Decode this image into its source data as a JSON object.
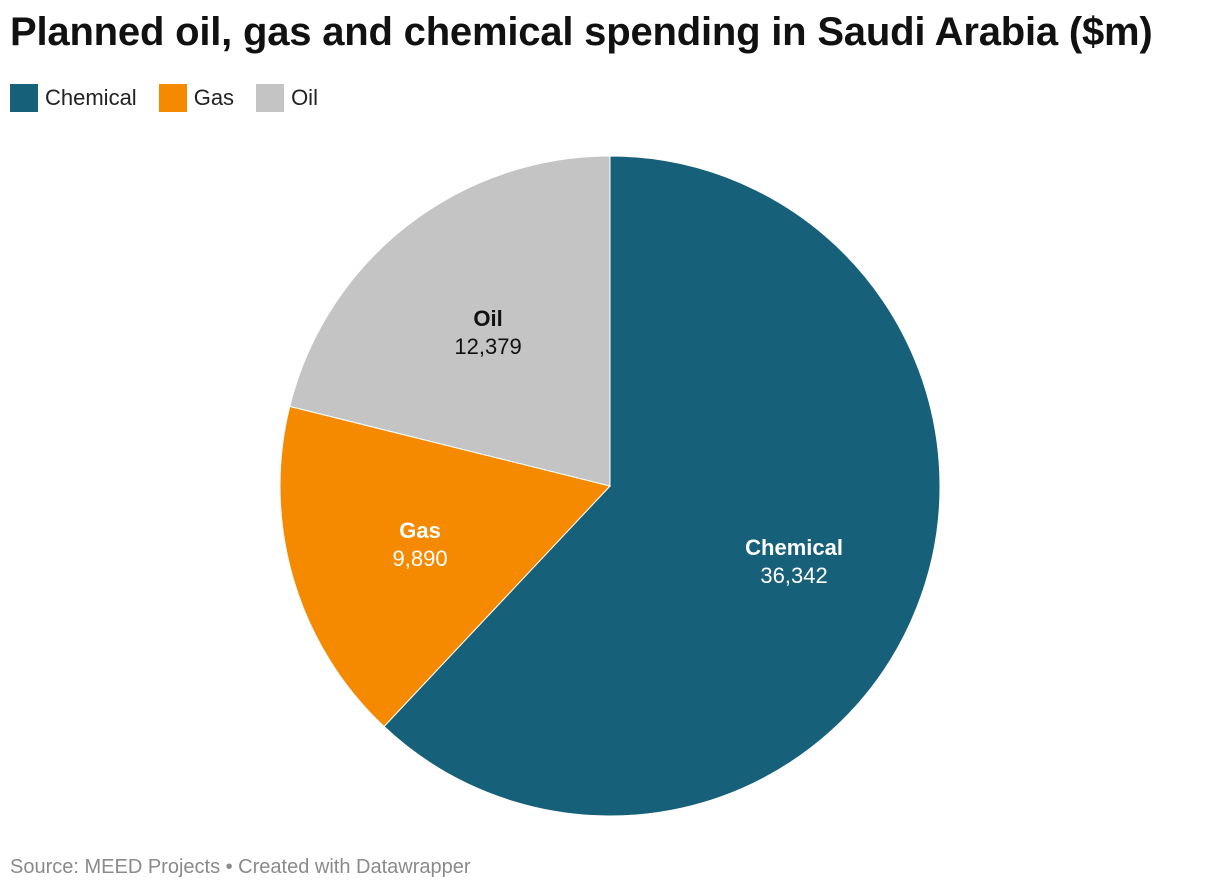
{
  "chart_data": {
    "type": "pie",
    "title": "Planned oil, gas and chemical spending in Saudi Arabia ($m)",
    "slices": [
      {
        "name": "Chemical",
        "value": 36342,
        "label": "36,342",
        "color": "#17607a",
        "label_color": "#ffffff"
      },
      {
        "name": "Gas",
        "value": 9890,
        "label": "9,890",
        "color": "#f58a00",
        "label_color": "#ffffff"
      },
      {
        "name": "Oil",
        "value": 12379,
        "label": "12,379",
        "color": "#c4c4c4",
        "label_color": "#111111"
      }
    ],
    "legend": {
      "placement": "top-left",
      "entries": [
        "Chemical",
        "Gas",
        "Oil"
      ]
    }
  },
  "footer": {
    "source": "Source: MEED Projects • Created with Datawrapper"
  }
}
